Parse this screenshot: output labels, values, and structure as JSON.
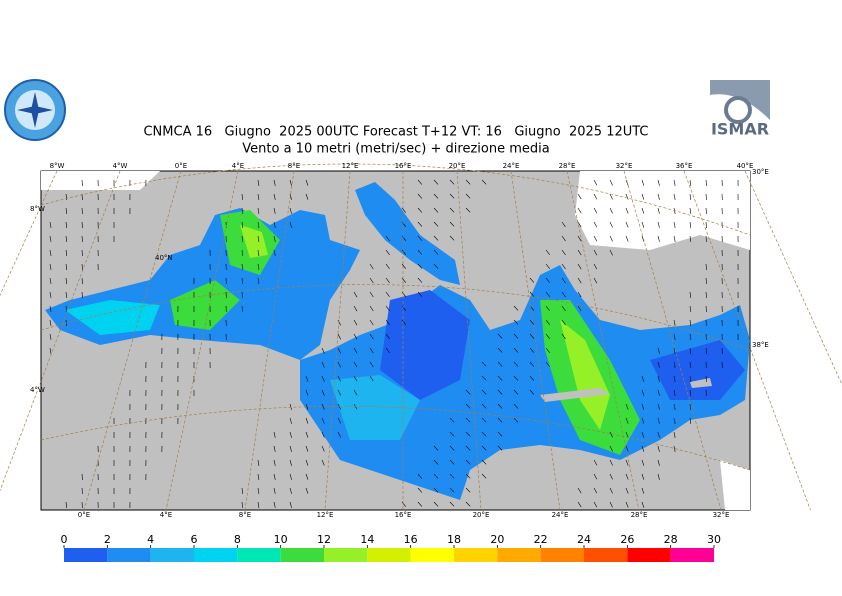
{
  "header": {
    "title": "CNMCA 16   Giugno  2025 00UTC Forecast T+12 VT: 16   Giugno  2025 12UTC",
    "subtitle": "Vento a 10 metri (metri/sec) + direzione media"
  },
  "logos": {
    "right": "ISMAR"
  },
  "map": {
    "top_labels": [
      "8°W",
      "4°W",
      "0°E",
      "4°E",
      "8°E",
      "12°E",
      "16°E",
      "20°E",
      "24°E",
      "28°E",
      "32°E",
      "36°E",
      "40°E"
    ],
    "bottom_labels": [
      "0°E",
      "4°E",
      "8°E",
      "12°E",
      "16°E",
      "20°E",
      "24°E",
      "28°E",
      "32°E"
    ],
    "left_labels": [
      "8°W",
      "40°N",
      "4°W"
    ],
    "right_labels": [
      "30°E",
      "38°E"
    ]
  },
  "colorbar": {
    "ticks": [
      0,
      2,
      4,
      6,
      8,
      10,
      12,
      14,
      16,
      18,
      20,
      22,
      24,
      26,
      28,
      30
    ],
    "colors": [
      "#1e5ff0",
      "#1e8cf0",
      "#1eb4f0",
      "#00d2f0",
      "#00e6b4",
      "#3cdc3c",
      "#96f028",
      "#d2f000",
      "#ffff00",
      "#ffd200",
      "#ffaa00",
      "#ff8200",
      "#ff5000",
      "#ff0000",
      "#ff0096"
    ]
  }
}
